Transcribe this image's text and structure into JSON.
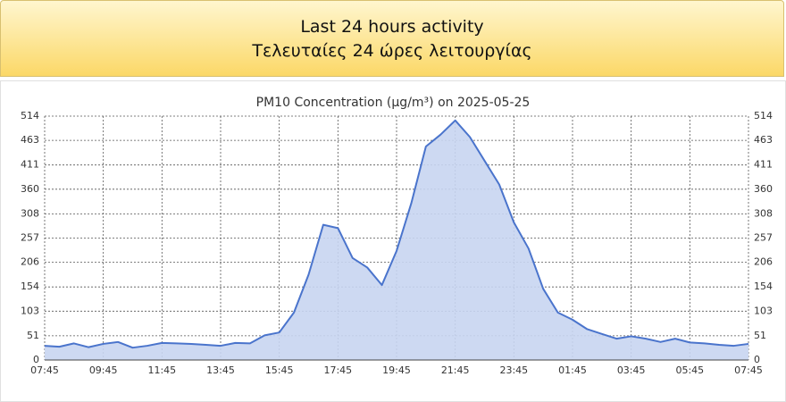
{
  "header": {
    "title_en": "Last 24 hours activity",
    "title_el": "Τελευταίες 24 ώρες λειτουργίας"
  },
  "chart_data": {
    "type": "area",
    "title": "PM10 Concentration (μg/m³) on 2025-05-25",
    "x": [
      0,
      0.5,
      1,
      1.5,
      2,
      2.5,
      3,
      3.5,
      4,
      4.5,
      5,
      5.5,
      6,
      6.5,
      7,
      7.5,
      8,
      8.5,
      9,
      9.5,
      10,
      10.5,
      11,
      11.5,
      12,
      12.5,
      13,
      13.5,
      14,
      14.5,
      15,
      15.5,
      16,
      16.5,
      17,
      17.5,
      18,
      18.5,
      19,
      19.5,
      20,
      20.5,
      21,
      21.5,
      22,
      22.5,
      23,
      23.5,
      24
    ],
    "series": [
      {
        "name": "PM10",
        "color": "#4a74cc",
        "fill": "#c8d5f1",
        "values": [
          30,
          28,
          35,
          27,
          34,
          38,
          26,
          30,
          36,
          35,
          34,
          32,
          30,
          36,
          35,
          52,
          58,
          100,
          180,
          285,
          278,
          215,
          195,
          158,
          230,
          330,
          450,
          475,
          505,
          470,
          420,
          370,
          290,
          235,
          150,
          100,
          85,
          65,
          55,
          45,
          50,
          45,
          38,
          45,
          37,
          35,
          32,
          30,
          34
        ]
      }
    ],
    "xlim": [
      0,
      24
    ],
    "xticks": [
      {
        "value": 0,
        "label": "07:45"
      },
      {
        "value": 2,
        "label": "09:45"
      },
      {
        "value": 4,
        "label": "11:45"
      },
      {
        "value": 6,
        "label": "13:45"
      },
      {
        "value": 8,
        "label": "15:45"
      },
      {
        "value": 10,
        "label": "17:45"
      },
      {
        "value": 12,
        "label": "19:45"
      },
      {
        "value": 14,
        "label": "21:45"
      },
      {
        "value": 16,
        "label": "23:45"
      },
      {
        "value": 18,
        "label": "01:45"
      },
      {
        "value": 20,
        "label": "03:45"
      },
      {
        "value": 22,
        "label": "05:45"
      },
      {
        "value": 24,
        "label": "07:45"
      }
    ],
    "ylim": [
      0,
      514
    ],
    "yticks": [
      0,
      51,
      103,
      154,
      206,
      257,
      308,
      360,
      411,
      463,
      514
    ],
    "grid": true
  }
}
